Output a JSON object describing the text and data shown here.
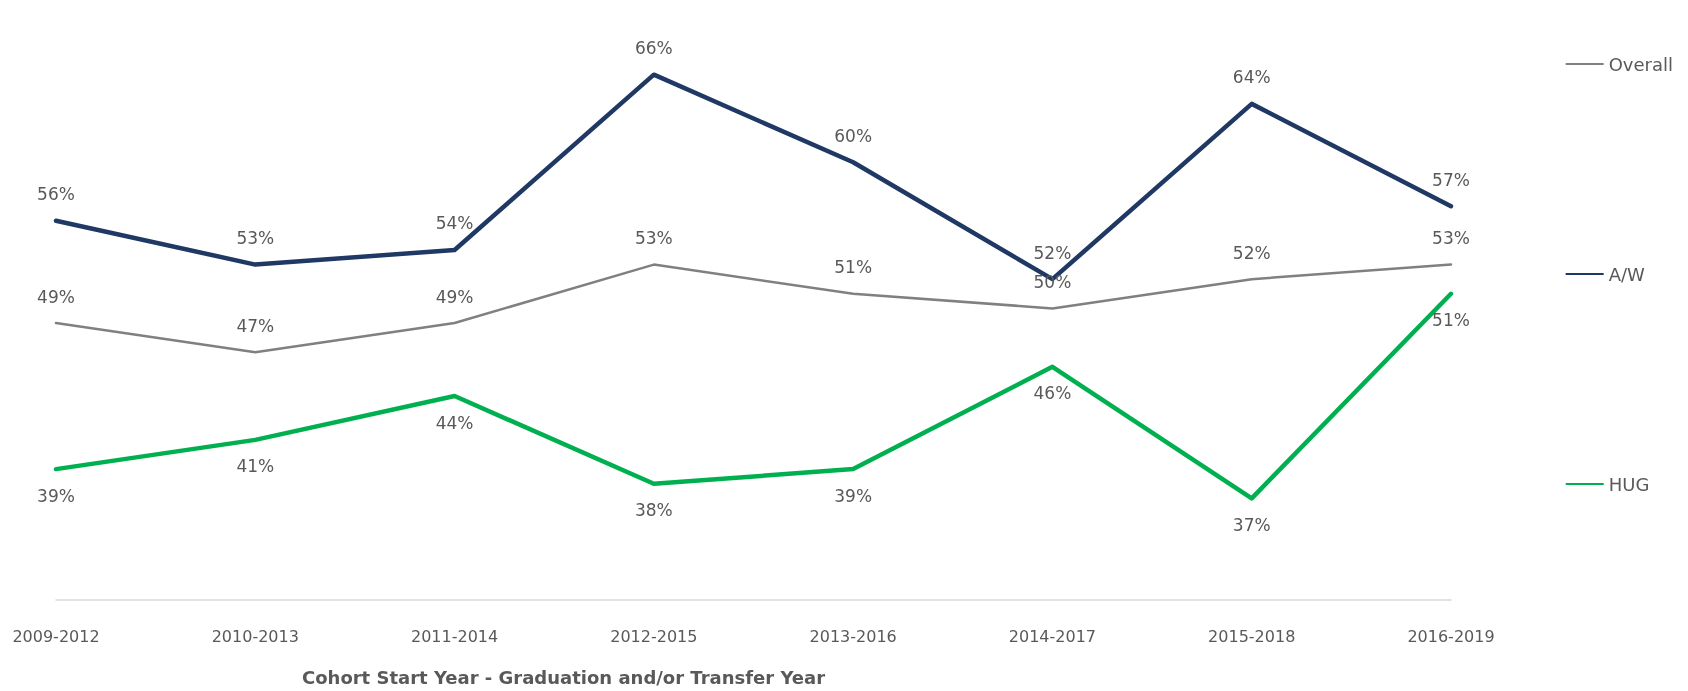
{
  "chart_data": {
    "type": "line",
    "xlabel": "Cohort Start Year - Graduation and/or Transfer Year",
    "categories": [
      "2009-2012",
      "2010-2013",
      "2011-2014",
      "2012-2015",
      "2013-2016",
      "2014-2017",
      "2015-2018",
      "2016-2019"
    ],
    "series": [
      {
        "name": "Overall",
        "color": "#808080",
        "values": [
          49,
          47,
          49,
          53,
          51,
          50,
          52,
          53
        ],
        "value_labels": [
          "49%",
          "47%",
          "49%",
          "53%",
          "51%",
          "50%",
          "52%",
          "53%"
        ]
      },
      {
        "name": "A/W",
        "color": "#1f3864",
        "values": [
          56,
          53,
          54,
          66,
          60,
          52,
          64,
          57
        ],
        "value_labels": [
          "56%",
          "53%",
          "54%",
          "66%",
          "60%",
          "52%",
          "64%",
          "57%"
        ]
      },
      {
        "name": "HUG",
        "color": "#00b050",
        "values": [
          39,
          41,
          44,
          38,
          39,
          46,
          37,
          51
        ],
        "value_labels": [
          "39%",
          "41%",
          "44%",
          "38%",
          "39%",
          "46%",
          "37%",
          "51%"
        ]
      }
    ],
    "tick_labels": "x",
    "grid": false,
    "legend": "right",
    "marker": "none",
    "line_style": "solid"
  }
}
